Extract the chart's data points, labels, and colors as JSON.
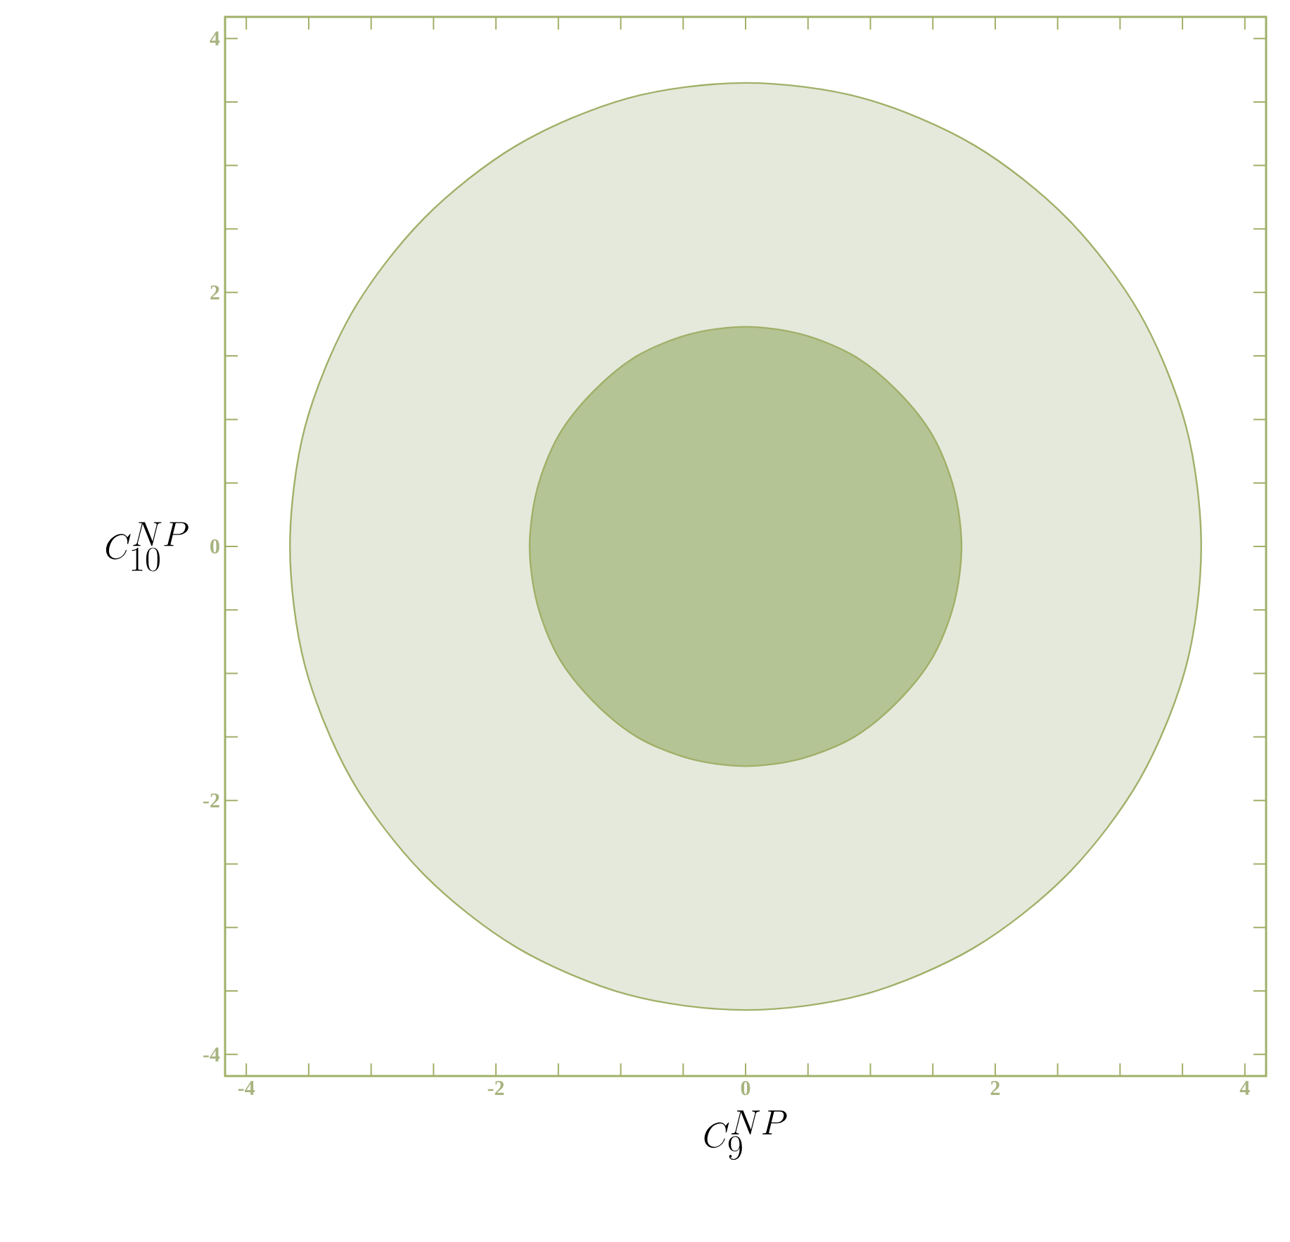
{
  "chart_data": {
    "type": "area",
    "xlabel": "C_9^{NP}",
    "ylabel": "C_{10}^{NP}",
    "xlim": [
      -4.17,
      4.17
    ],
    "ylim": [
      -4.17,
      4.17
    ],
    "xticks": [
      -4,
      {
        "value": -3.5,
        "label": null
      },
      {
        "value": -3,
        "label": null
      },
      {
        "value": -2.5,
        "label": null
      },
      -2,
      {
        "value": -1.5,
        "label": null
      },
      {
        "value": -1,
        "label": null
      },
      {
        "value": -0.5,
        "label": null
      },
      0,
      {
        "value": 0.5,
        "label": null
      },
      {
        "value": 1,
        "label": null
      },
      {
        "value": 1.5,
        "label": null
      },
      2,
      {
        "value": 2.5,
        "label": null
      },
      {
        "value": 3,
        "label": null
      },
      {
        "value": 3.5,
        "label": null
      },
      4
    ],
    "yticks": [
      -4,
      {
        "value": -3.5,
        "label": null
      },
      {
        "value": -3,
        "label": null
      },
      {
        "value": -2.5,
        "label": null
      },
      -2,
      {
        "value": -1.5,
        "label": null
      },
      {
        "value": -1,
        "label": null
      },
      {
        "value": -0.5,
        "label": null
      },
      0,
      {
        "value": 0.5,
        "label": null
      },
      {
        "value": 1,
        "label": null
      },
      {
        "value": 1.5,
        "label": null
      },
      2,
      {
        "value": 2.5,
        "label": null
      },
      {
        "value": 3,
        "label": null
      },
      {
        "value": 3.5,
        "label": null
      },
      4
    ],
    "series": [
      {
        "color": "#e5e9dc",
        "x": [
          3.65,
          3.53,
          3.16,
          2.58,
          1.83,
          0.94,
          0,
          -0.94,
          -1.83,
          -2.58,
          -3.16,
          -3.53,
          -3.65,
          -3.53,
          -3.16,
          -2.58,
          -1.83,
          -0.94,
          0,
          0.94,
          1.83,
          2.58,
          3.16,
          3.53
        ],
        "values": [
          0,
          0.94,
          1.83,
          2.58,
          3.16,
          3.53,
          3.65,
          3.53,
          3.16,
          2.58,
          1.83,
          0.94,
          0,
          -0.94,
          -1.83,
          -2.58,
          -3.16,
          -3.53,
          -3.65,
          -3.53,
          -3.16,
          -2.58,
          -1.83,
          -0.94
        ]
      },
      {
        "color": "#b5c494",
        "x": [
          1.73,
          1.67,
          1.5,
          1.22,
          0.87,
          0.45,
          0,
          -0.45,
          -0.87,
          -1.22,
          -1.5,
          -1.67,
          -1.73,
          -1.67,
          -1.5,
          -1.22,
          -0.87,
          -0.45,
          0,
          0.45,
          0.87,
          1.22,
          1.5,
          1.67
        ],
        "values": [
          0,
          0.45,
          0.87,
          1.22,
          1.5,
          1.67,
          1.73,
          1.67,
          1.5,
          1.22,
          0.87,
          0.45,
          0,
          -0.45,
          -0.87,
          -1.22,
          -1.5,
          -1.67,
          -1.73,
          -1.67,
          -1.5,
          -1.22,
          -0.87,
          -0.45
        ]
      }
    ]
  }
}
